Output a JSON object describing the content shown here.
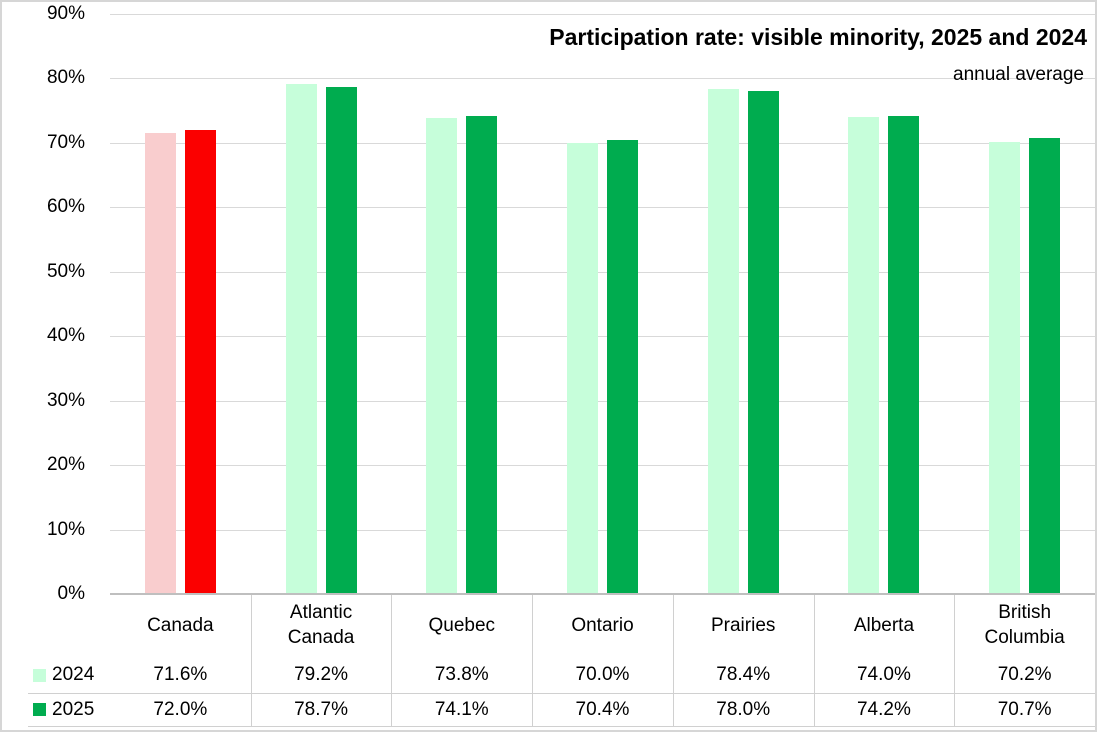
{
  "chart_data": {
    "type": "bar",
    "title": "Participation rate: visible minority, 2025 and 2024",
    "subtitle": "annual average",
    "categories": [
      "Canada",
      "Atlantic Canada",
      "Quebec",
      "Ontario",
      "Prairies",
      "Alberta",
      "British Columbia"
    ],
    "series": [
      {
        "name": "2024",
        "color": "#C6FEDA",
        "highlight_color": "#F9CDCE",
        "values": [
          71.6,
          79.2,
          73.8,
          70.0,
          78.4,
          74.0,
          70.2
        ]
      },
      {
        "name": "2025",
        "color": "#00AC4F",
        "highlight_color": "#FB0000",
        "values": [
          72.0,
          78.7,
          74.1,
          70.4,
          78.0,
          74.2,
          70.7
        ]
      }
    ],
    "highlight_category": "Canada",
    "table_values": {
      "2024": [
        "71.6%",
        "79.2%",
        "73.8%",
        "70.0%",
        "78.4%",
        "74.0%",
        "70.2%"
      ],
      "2025": [
        "72.0%",
        "78.7%",
        "74.1%",
        "70.4%",
        "78.0%",
        "74.2%",
        "70.7%"
      ]
    },
    "ylim": [
      0,
      90
    ],
    "ytick_step": 10,
    "ytick_labels": [
      "0%",
      "10%",
      "20%",
      "30%",
      "40%",
      "50%",
      "60%",
      "70%",
      "80%",
      "90%"
    ],
    "grid": "horizontal",
    "legend_position": "table-left",
    "colors": {
      "gridline": "#D9D9D9",
      "axis_line": "#BFBFBF",
      "table_line": "#D0D0D0",
      "frame_border": "#D6D6D6",
      "text": "#000000",
      "background": "#FFFFFF"
    }
  }
}
